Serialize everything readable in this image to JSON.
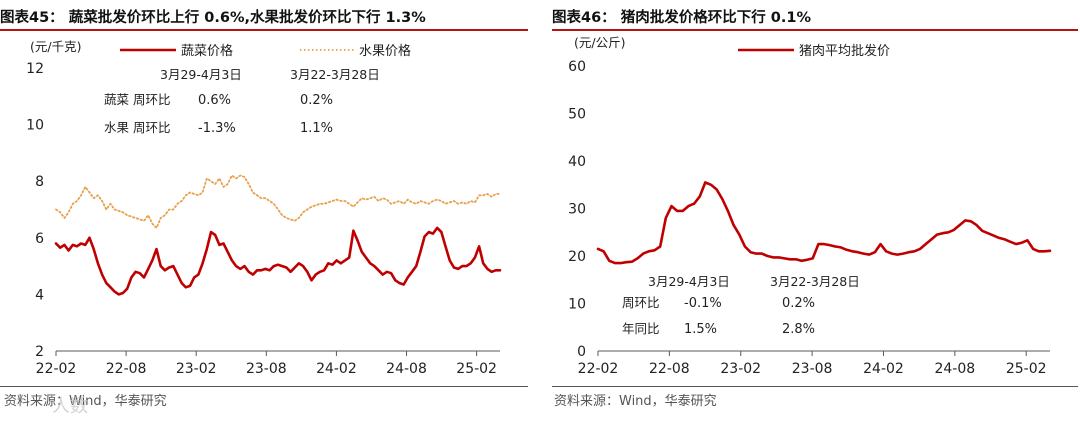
{
  "charts": [
    {
      "panel_title": "图表45：  蔬菜批发价环比上行 0.6%,水果批发价环比下行 1.3%",
      "source": "资料来源：Wind，华泰研究",
      "chart_data": {
        "type": "line",
        "ylabel": "(元/千克)",
        "ylim": [
          2,
          12
        ],
        "yticks": [
          "2",
          "4",
          "6",
          "8",
          "10",
          "12"
        ],
        "xticks": [
          "22-02",
          "22-08",
          "23-02",
          "23-08",
          "24-02",
          "24-08",
          "25-02"
        ],
        "x_start": "2022-02",
        "x_end": "2025-04",
        "legend_position": "top",
        "series": [
          {
            "name": "蔬菜价格",
            "color": "#c00000",
            "style": "solid",
            "values": [
              5.8,
              5.65,
              5.75,
              5.55,
              5.75,
              5.7,
              5.8,
              5.75,
              6.0,
              5.6,
              5.1,
              4.7,
              4.4,
              4.25,
              4.1,
              4.0,
              4.05,
              4.2,
              4.6,
              4.8,
              4.75,
              4.6,
              4.9,
              5.2,
              5.6,
              5.0,
              4.85,
              4.95,
              5.0,
              4.7,
              4.4,
              4.25,
              4.3,
              4.6,
              4.7,
              5.1,
              5.6,
              6.2,
              6.1,
              5.75,
              5.8,
              5.5,
              5.2,
              5.0,
              4.9,
              5.0,
              4.8,
              4.7,
              4.85,
              4.85,
              4.9,
              4.85,
              5.0,
              5.05,
              5.0,
              4.95,
              4.8,
              4.95,
              5.1,
              5.0,
              4.8,
              4.5,
              4.7,
              4.8,
              4.85,
              5.1,
              5.05,
              5.2,
              5.1,
              5.2,
              5.3,
              6.25,
              5.9,
              5.5,
              5.3,
              5.1,
              5.0,
              4.85,
              4.7,
              4.8,
              4.75,
              4.5,
              4.4,
              4.35,
              4.6,
              4.8,
              5.0,
              5.5,
              6.05,
              6.2,
              6.15,
              6.35,
              6.2,
              5.7,
              5.2,
              4.95,
              4.9,
              5.0,
              5.0,
              5.1,
              5.3,
              5.7,
              5.1,
              4.9,
              4.8,
              4.85,
              4.85
            ]
          },
          {
            "name": "水果价格",
            "color": "#e8a14a",
            "style": "dotted",
            "values": [
              7.0,
              6.9,
              6.7,
              6.9,
              7.2,
              7.3,
              7.5,
              7.8,
              7.6,
              7.4,
              7.5,
              7.3,
              7.0,
              7.2,
              7.0,
              6.95,
              6.9,
              6.8,
              6.75,
              6.7,
              6.65,
              6.6,
              6.8,
              6.5,
              6.35,
              6.7,
              6.8,
              7.0,
              7.0,
              7.2,
              7.3,
              7.5,
              7.6,
              7.55,
              7.5,
              7.6,
              8.1,
              8.0,
              7.9,
              8.1,
              7.8,
              7.9,
              8.2,
              8.1,
              8.2,
              8.15,
              7.9,
              7.6,
              7.5,
              7.4,
              7.4,
              7.3,
              7.2,
              7.0,
              6.8,
              6.7,
              6.65,
              6.6,
              6.7,
              6.9,
              7.0,
              7.1,
              7.15,
              7.2,
              7.2,
              7.25,
              7.3,
              7.35,
              7.3,
              7.3,
              7.2,
              7.1,
              7.25,
              7.4,
              7.35,
              7.4,
              7.45,
              7.3,
              7.4,
              7.35,
              7.2,
              7.25,
              7.3,
              7.2,
              7.35,
              7.25,
              7.2,
              7.3,
              7.25,
              7.2,
              7.3,
              7.35,
              7.3,
              7.2,
              7.25,
              7.3,
              7.2,
              7.25,
              7.2,
              7.3,
              7.25,
              7.5,
              7.5,
              7.55,
              7.45,
              7.55,
              7.55
            ]
          }
        ],
        "annotation": {
          "headers": [
            "3月29-4月3日",
            "3月22-3月28日"
          ],
          "rows": [
            {
              "label": "蔬菜  周环比",
              "values": [
                "0.6%",
                "0.2%"
              ]
            },
            {
              "label": "水果  周环比",
              "values": [
                "-1.3%",
                "1.1%"
              ]
            }
          ]
        }
      }
    },
    {
      "panel_title": "图表46：  猪肉批发价格环比下行 0.1%",
      "source": "资料来源：Wind，华泰研究",
      "chart_data": {
        "type": "line",
        "ylabel": "(元/公斤)",
        "ylim": [
          0,
          60
        ],
        "yticks": [
          "0",
          "10",
          "20",
          "30",
          "40",
          "50",
          "60"
        ],
        "xticks": [
          "22-02",
          "22-08",
          "23-02",
          "23-08",
          "24-02",
          "24-08",
          "25-02"
        ],
        "x_start": "2022-02",
        "x_end": "2025-04",
        "legend_position": "top",
        "series": [
          {
            "name": "猪肉平均批发价",
            "color": "#c00000",
            "style": "solid",
            "values": [
              21.5,
              21.0,
              19.0,
              18.5,
              18.5,
              18.7,
              18.8,
              19.5,
              20.5,
              21.0,
              21.2,
              22.0,
              28.0,
              30.5,
              29.5,
              29.5,
              30.5,
              31.0,
              32.5,
              35.5,
              35.0,
              34.0,
              32.0,
              29.5,
              26.5,
              24.5,
              22.0,
              20.8,
              20.5,
              20.5,
              20.0,
              19.7,
              19.7,
              19.5,
              19.3,
              19.3,
              19.0,
              19.2,
              19.5,
              22.5,
              22.5,
              22.3,
              22.0,
              21.8,
              21.3,
              21.0,
              20.8,
              20.5,
              20.3,
              20.8,
              22.5,
              21.0,
              20.5,
              20.3,
              20.5,
              20.8,
              21.0,
              21.5,
              22.5,
              23.5,
              24.5,
              24.8,
              25.0,
              25.5,
              26.5,
              27.5,
              27.3,
              26.5,
              25.3,
              24.8,
              24.3,
              23.8,
              23.5,
              23.0,
              22.5,
              22.8,
              23.3,
              21.5,
              21.0,
              21.0,
              21.1
            ]
          }
        ],
        "annotation": {
          "headers": [
            "3月29-4月3日",
            "3月22-3月28日"
          ],
          "rows": [
            {
              "label": "周环比",
              "values": [
                "-0.1%",
                "0.2%"
              ]
            },
            {
              "label": "年同比",
              "values": [
                "1.5%",
                "2.8%"
              ]
            }
          ]
        }
      }
    }
  ],
  "watermark": "人数",
  "colors": {
    "accent": "#b51212",
    "axis": "#595959"
  }
}
